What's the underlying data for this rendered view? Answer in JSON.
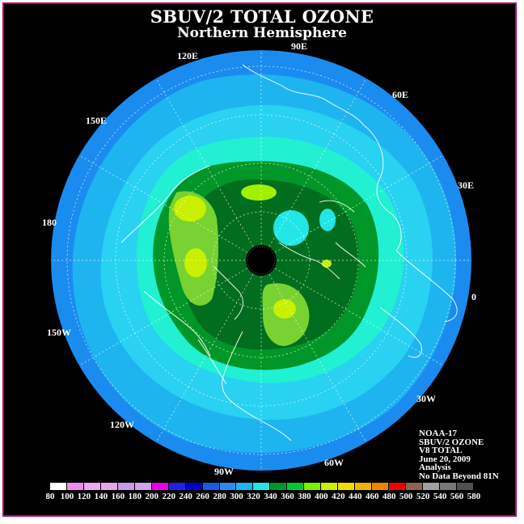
{
  "title": "SBUV/2 TOTAL OZONE",
  "subtitle": "Northern Hemisphere",
  "longitude_labels": {
    "lon_90E": "90E",
    "lon_60E": "60E",
    "lon_30E": "30E",
    "lon_0": "0",
    "lon_30W": "30W",
    "lon_60W": "60W",
    "lon_90W": "90W",
    "lon_120W": "120W",
    "lon_150W": "150W",
    "lon_180": "180",
    "lon_150E": "150E",
    "lon_120E": "120E"
  },
  "info": {
    "satellite": "NOAA-17",
    "product": "SBUV/2 OZONE",
    "version": "V8 TOTAL",
    "date": "June 20, 2009",
    "type": "Analysis",
    "note": "No Data Beyond 81N"
  },
  "legend": {
    "ticks": [
      "80",
      "100",
      "120",
      "140",
      "160",
      "180",
      "200",
      "220",
      "240",
      "260",
      "280",
      "300",
      "320",
      "340",
      "360",
      "380",
      "400",
      "420",
      "440",
      "460",
      "480",
      "500",
      "520",
      "540",
      "560",
      "580"
    ],
    "colors": [
      "#ffffff",
      "#f08cf0",
      "#f0a6f0",
      "#e4a8e8",
      "#c79be6",
      "#d2a0f0",
      "#e600e6",
      "#2020e6",
      "#0000c8",
      "#1a5ae6",
      "#2c8af0",
      "#1eb4f0",
      "#22e6e6",
      "#009628",
      "#00c832",
      "#78f000",
      "#c8f000",
      "#f0dc00",
      "#f0b400",
      "#f08200",
      "#f00000",
      "#8c6450",
      "#a0a0a0",
      "#787878",
      "#505050"
    ]
  },
  "colors": {
    "background": "#000000",
    "frame": "#b0006a",
    "ring_outer": "#1a8cf0",
    "ring_2": "#1eb4f0",
    "ring_3": "#28d2f0",
    "ring_4": "#22f0d2",
    "band_340": "#009628",
    "band_360": "#006e1e",
    "patch_380": "#78d232",
    "patch_400": "#c8f000",
    "no_data": "#000000"
  }
}
